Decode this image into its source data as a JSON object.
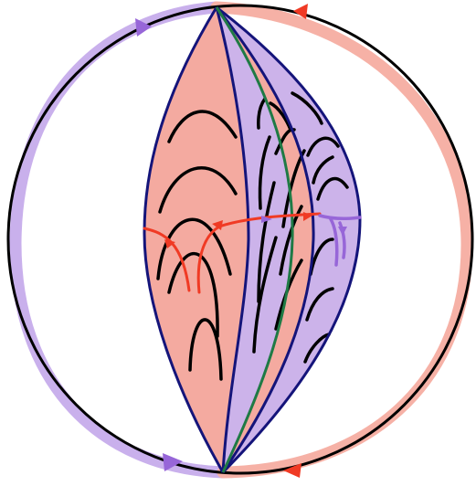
{
  "colors": {
    "background": "#ffffff",
    "salmon_fill": "#f4aaa0",
    "salmon_band": "#f6b1a6",
    "lavender_fill": "#ccb3ea",
    "lavender_band": "#c9b0ec",
    "boundary_circle": "#000000",
    "lens_outline": "#14147a",
    "leaf_curves": "#000000",
    "green_geodesic": "#1f7a45",
    "red_arrows": "#f03a24",
    "purple_arrows": "#9766d8"
  },
  "icons": {
    "top_left_arrow": "triangle-arrow-right",
    "top_right_arrow": "triangle-arrow-left",
    "bottom_left_arrow": "triangle-arrow-right",
    "bottom_right_arrow": "triangle-arrow-left"
  }
}
